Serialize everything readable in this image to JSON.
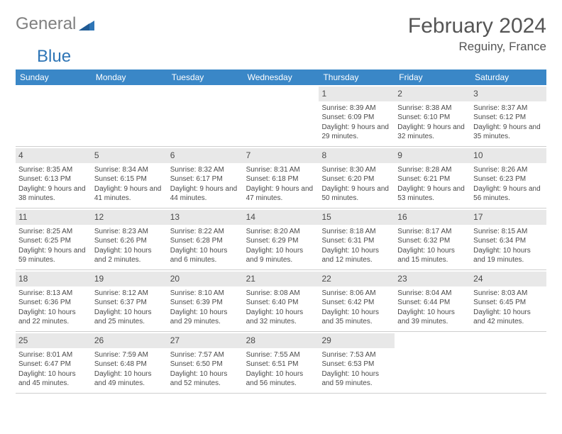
{
  "logo": {
    "gray": "General",
    "blue": "Blue"
  },
  "title": "February 2024",
  "location": "Reguiny, France",
  "colors": {
    "header_bg": "#3a87c7",
    "header_text": "#ffffff",
    "daynum_bg": "#e8e8e8",
    "text": "#4a4a4a",
    "logo_gray": "#808080",
    "logo_blue": "#2e75b6",
    "border": "#cfcfcf"
  },
  "day_headers": [
    "Sunday",
    "Monday",
    "Tuesday",
    "Wednesday",
    "Thursday",
    "Friday",
    "Saturday"
  ],
  "weeks": [
    [
      null,
      null,
      null,
      null,
      {
        "n": "1",
        "sr": "Sunrise: 8:39 AM",
        "ss": "Sunset: 6:09 PM",
        "dl": "Daylight: 9 hours and 29 minutes."
      },
      {
        "n": "2",
        "sr": "Sunrise: 8:38 AM",
        "ss": "Sunset: 6:10 PM",
        "dl": "Daylight: 9 hours and 32 minutes."
      },
      {
        "n": "3",
        "sr": "Sunrise: 8:37 AM",
        "ss": "Sunset: 6:12 PM",
        "dl": "Daylight: 9 hours and 35 minutes."
      }
    ],
    [
      {
        "n": "4",
        "sr": "Sunrise: 8:35 AM",
        "ss": "Sunset: 6:13 PM",
        "dl": "Daylight: 9 hours and 38 minutes."
      },
      {
        "n": "5",
        "sr": "Sunrise: 8:34 AM",
        "ss": "Sunset: 6:15 PM",
        "dl": "Daylight: 9 hours and 41 minutes."
      },
      {
        "n": "6",
        "sr": "Sunrise: 8:32 AM",
        "ss": "Sunset: 6:17 PM",
        "dl": "Daylight: 9 hours and 44 minutes."
      },
      {
        "n": "7",
        "sr": "Sunrise: 8:31 AM",
        "ss": "Sunset: 6:18 PM",
        "dl": "Daylight: 9 hours and 47 minutes."
      },
      {
        "n": "8",
        "sr": "Sunrise: 8:30 AM",
        "ss": "Sunset: 6:20 PM",
        "dl": "Daylight: 9 hours and 50 minutes."
      },
      {
        "n": "9",
        "sr": "Sunrise: 8:28 AM",
        "ss": "Sunset: 6:21 PM",
        "dl": "Daylight: 9 hours and 53 minutes."
      },
      {
        "n": "10",
        "sr": "Sunrise: 8:26 AM",
        "ss": "Sunset: 6:23 PM",
        "dl": "Daylight: 9 hours and 56 minutes."
      }
    ],
    [
      {
        "n": "11",
        "sr": "Sunrise: 8:25 AM",
        "ss": "Sunset: 6:25 PM",
        "dl": "Daylight: 9 hours and 59 minutes."
      },
      {
        "n": "12",
        "sr": "Sunrise: 8:23 AM",
        "ss": "Sunset: 6:26 PM",
        "dl": "Daylight: 10 hours and 2 minutes."
      },
      {
        "n": "13",
        "sr": "Sunrise: 8:22 AM",
        "ss": "Sunset: 6:28 PM",
        "dl": "Daylight: 10 hours and 6 minutes."
      },
      {
        "n": "14",
        "sr": "Sunrise: 8:20 AM",
        "ss": "Sunset: 6:29 PM",
        "dl": "Daylight: 10 hours and 9 minutes."
      },
      {
        "n": "15",
        "sr": "Sunrise: 8:18 AM",
        "ss": "Sunset: 6:31 PM",
        "dl": "Daylight: 10 hours and 12 minutes."
      },
      {
        "n": "16",
        "sr": "Sunrise: 8:17 AM",
        "ss": "Sunset: 6:32 PM",
        "dl": "Daylight: 10 hours and 15 minutes."
      },
      {
        "n": "17",
        "sr": "Sunrise: 8:15 AM",
        "ss": "Sunset: 6:34 PM",
        "dl": "Daylight: 10 hours and 19 minutes."
      }
    ],
    [
      {
        "n": "18",
        "sr": "Sunrise: 8:13 AM",
        "ss": "Sunset: 6:36 PM",
        "dl": "Daylight: 10 hours and 22 minutes."
      },
      {
        "n": "19",
        "sr": "Sunrise: 8:12 AM",
        "ss": "Sunset: 6:37 PM",
        "dl": "Daylight: 10 hours and 25 minutes."
      },
      {
        "n": "20",
        "sr": "Sunrise: 8:10 AM",
        "ss": "Sunset: 6:39 PM",
        "dl": "Daylight: 10 hours and 29 minutes."
      },
      {
        "n": "21",
        "sr": "Sunrise: 8:08 AM",
        "ss": "Sunset: 6:40 PM",
        "dl": "Daylight: 10 hours and 32 minutes."
      },
      {
        "n": "22",
        "sr": "Sunrise: 8:06 AM",
        "ss": "Sunset: 6:42 PM",
        "dl": "Daylight: 10 hours and 35 minutes."
      },
      {
        "n": "23",
        "sr": "Sunrise: 8:04 AM",
        "ss": "Sunset: 6:44 PM",
        "dl": "Daylight: 10 hours and 39 minutes."
      },
      {
        "n": "24",
        "sr": "Sunrise: 8:03 AM",
        "ss": "Sunset: 6:45 PM",
        "dl": "Daylight: 10 hours and 42 minutes."
      }
    ],
    [
      {
        "n": "25",
        "sr": "Sunrise: 8:01 AM",
        "ss": "Sunset: 6:47 PM",
        "dl": "Daylight: 10 hours and 45 minutes."
      },
      {
        "n": "26",
        "sr": "Sunrise: 7:59 AM",
        "ss": "Sunset: 6:48 PM",
        "dl": "Daylight: 10 hours and 49 minutes."
      },
      {
        "n": "27",
        "sr": "Sunrise: 7:57 AM",
        "ss": "Sunset: 6:50 PM",
        "dl": "Daylight: 10 hours and 52 minutes."
      },
      {
        "n": "28",
        "sr": "Sunrise: 7:55 AM",
        "ss": "Sunset: 6:51 PM",
        "dl": "Daylight: 10 hours and 56 minutes."
      },
      {
        "n": "29",
        "sr": "Sunrise: 7:53 AM",
        "ss": "Sunset: 6:53 PM",
        "dl": "Daylight: 10 hours and 59 minutes."
      },
      null,
      null
    ]
  ]
}
